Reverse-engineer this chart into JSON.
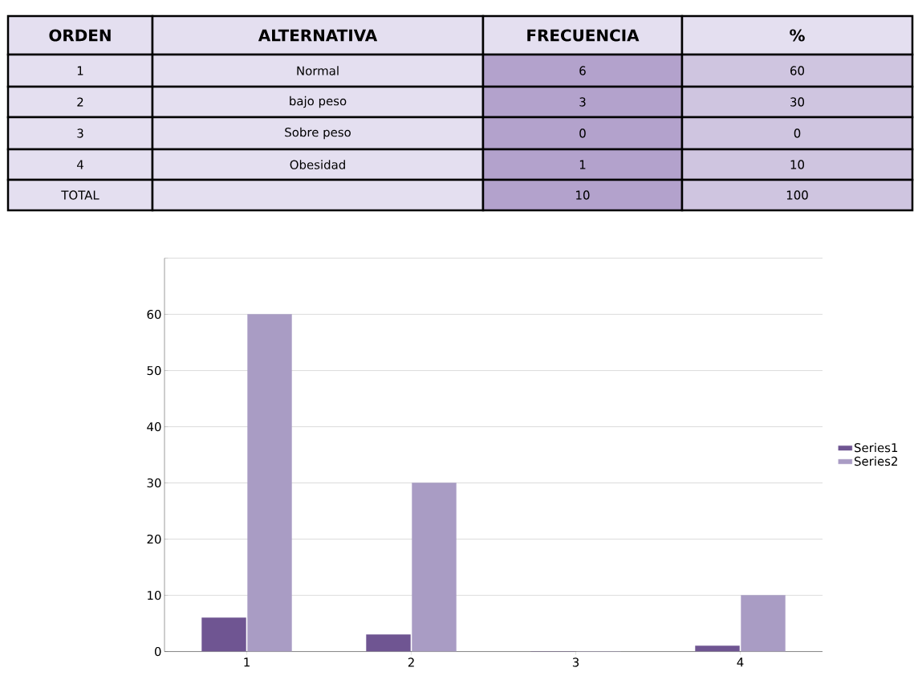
{
  "chart_data": {
    "type": "bar",
    "categories": [
      "1",
      "2",
      "3",
      "4"
    ],
    "series": [
      {
        "name": "Series1",
        "color": "#6f5592",
        "values": [
          6,
          3,
          0,
          1
        ]
      },
      {
        "name": "Series2",
        "color": "#a99cc4",
        "values": [
          60,
          30,
          0,
          10
        ]
      }
    ],
    "ylim": [
      0,
      70
    ],
    "yticks": [
      0,
      10,
      20,
      30,
      40,
      50,
      60,
      {
        "value": 70,
        "label": null
      }
    ],
    "grid": "y",
    "legend": "right",
    "annotations": [
      "ORDEN",
      "ALTERNATIVA",
      "FRECUENCIA",
      "%",
      "1",
      "Normal",
      "6",
      "60",
      "2",
      "bajo peso",
      "3",
      "30",
      "3",
      "Sobre peso",
      "0",
      "0",
      "4",
      "Obesidad",
      "1",
      "10",
      "TOTAL",
      "10",
      "100"
    ]
  }
}
